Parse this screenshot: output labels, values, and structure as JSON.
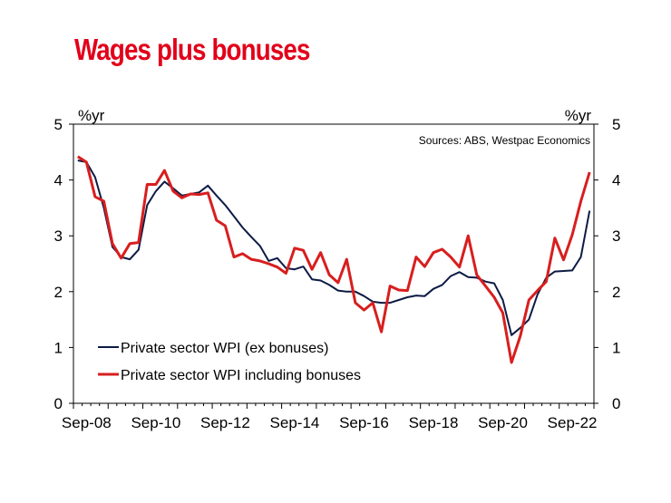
{
  "chart_data": {
    "type": "line",
    "title": "Wages plus bonuses",
    "ylabel_left": "%yr",
    "ylabel_right": "%yr",
    "source": "Sources: ABS, Westpac Economics",
    "ylim": [
      0,
      5
    ],
    "yticks": [
      "0",
      "1",
      "2",
      "3",
      "4",
      "5"
    ],
    "x_start": "Sep-08",
    "x_labels": [
      "Sep-08",
      "Sep-10",
      "Sep-12",
      "Sep-14",
      "Sep-16",
      "Sep-18",
      "Sep-20",
      "Sep-22"
    ],
    "grid": false,
    "legend": "bottom-left",
    "series": [
      {
        "name": "Private sector WPI (ex bonuses)",
        "color": "#0d1b45",
        "values": [
          4.35,
          4.32,
          4.05,
          3.5,
          2.8,
          2.62,
          2.58,
          2.75,
          3.55,
          3.8,
          3.97,
          3.85,
          3.72,
          3.75,
          3.78,
          3.9,
          3.72,
          3.55,
          3.35,
          3.15,
          2.98,
          2.82,
          2.55,
          2.6,
          2.42,
          2.4,
          2.45,
          2.22,
          2.2,
          2.12,
          2.02,
          2.0,
          2.0,
          1.92,
          1.82,
          1.8,
          1.8,
          1.85,
          1.9,
          1.93,
          1.92,
          2.05,
          2.12,
          2.28,
          2.35,
          2.26,
          2.25,
          2.18,
          2.15,
          1.85,
          1.22,
          1.35,
          1.5,
          1.95,
          2.25,
          2.36,
          2.37,
          2.38,
          2.62,
          3.45
        ]
      },
      {
        "name": "Private sector WPI including bonuses",
        "color": "#d81e1e",
        "values": [
          4.42,
          4.32,
          3.7,
          3.62,
          2.86,
          2.6,
          2.86,
          2.88,
          3.92,
          3.92,
          4.17,
          3.8,
          3.68,
          3.75,
          3.74,
          3.77,
          3.28,
          3.18,
          2.62,
          2.68,
          2.58,
          2.55,
          2.5,
          2.44,
          2.33,
          2.78,
          2.74,
          2.4,
          2.7,
          2.3,
          2.16,
          2.58,
          1.8,
          1.67,
          1.8,
          1.28,
          2.1,
          2.03,
          2.02,
          2.62,
          2.45,
          2.7,
          2.76,
          2.62,
          2.44,
          3.0,
          2.3,
          2.1,
          1.9,
          1.62,
          0.73,
          1.2,
          1.85,
          2.02,
          2.18,
          2.96,
          2.57,
          3.02,
          3.62,
          4.14
        ]
      }
    ]
  }
}
